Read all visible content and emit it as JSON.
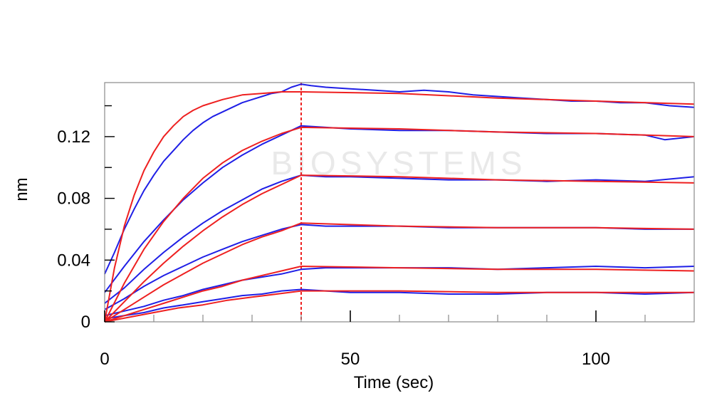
{
  "chart_data": {
    "type": "line",
    "title": "",
    "xlabel": "Time (sec)",
    "ylabel": "nm",
    "xlim": [
      0,
      120
    ],
    "ylim": [
      0,
      0.155
    ],
    "x_ticks": [
      0,
      50,
      100
    ],
    "y_ticks": [
      0,
      0.04,
      0.08,
      0.12
    ],
    "x_tick_labels": [
      "0",
      "50",
      "100"
    ],
    "y_tick_labels": [
      "0",
      "0.04",
      "0.08",
      "0.12"
    ],
    "grid": false,
    "legend": "none",
    "watermark": "BIOSYSTEMS",
    "dissociation_start_x": 40,
    "colors": {
      "measured": "#1f1fe6",
      "fit": "#ee2020",
      "divider": "#ee2020"
    },
    "series": [
      {
        "measured": [
          [
            0,
            0.031
          ],
          [
            2,
            0.045
          ],
          [
            4,
            0.06
          ],
          [
            6,
            0.073
          ],
          [
            8,
            0.085
          ],
          [
            10,
            0.095
          ],
          [
            12,
            0.104
          ],
          [
            14,
            0.111
          ],
          [
            16,
            0.118
          ],
          [
            18,
            0.124
          ],
          [
            20,
            0.129
          ],
          [
            22,
            0.133
          ],
          [
            24,
            0.136
          ],
          [
            26,
            0.139
          ],
          [
            28,
            0.142
          ],
          [
            30,
            0.144
          ],
          [
            32,
            0.146
          ],
          [
            34,
            0.148
          ],
          [
            36,
            0.149
          ],
          [
            38,
            0.152
          ],
          [
            40,
            0.154
          ],
          [
            42,
            0.153
          ],
          [
            45,
            0.152
          ],
          [
            50,
            0.151
          ],
          [
            55,
            0.15
          ],
          [
            60,
            0.149
          ],
          [
            65,
            0.15
          ],
          [
            70,
            0.149
          ],
          [
            75,
            0.147
          ],
          [
            80,
            0.146
          ],
          [
            85,
            0.145
          ],
          [
            90,
            0.144
          ],
          [
            95,
            0.143
          ],
          [
            100,
            0.143
          ],
          [
            105,
            0.142
          ],
          [
            110,
            0.142
          ],
          [
            115,
            0.14
          ],
          [
            120,
            0.139
          ]
        ],
        "fit": [
          [
            0,
            0.0
          ],
          [
            2,
            0.035
          ],
          [
            4,
            0.062
          ],
          [
            6,
            0.082
          ],
          [
            8,
            0.098
          ],
          [
            10,
            0.11
          ],
          [
            12,
            0.12
          ],
          [
            14,
            0.127
          ],
          [
            16,
            0.133
          ],
          [
            18,
            0.137
          ],
          [
            20,
            0.14
          ],
          [
            24,
            0.144
          ],
          [
            28,
            0.147
          ],
          [
            32,
            0.148
          ],
          [
            36,
            0.149
          ],
          [
            40,
            0.149
          ],
          [
            60,
            0.148
          ],
          [
            80,
            0.145
          ],
          [
            100,
            0.143
          ],
          [
            120,
            0.141
          ]
        ]
      },
      {
        "measured": [
          [
            0,
            0.019
          ],
          [
            4,
            0.036
          ],
          [
            8,
            0.052
          ],
          [
            12,
            0.066
          ],
          [
            16,
            0.079
          ],
          [
            20,
            0.09
          ],
          [
            24,
            0.1
          ],
          [
            28,
            0.108
          ],
          [
            32,
            0.115
          ],
          [
            36,
            0.121
          ],
          [
            40,
            0.127
          ],
          [
            45,
            0.126
          ],
          [
            50,
            0.125
          ],
          [
            60,
            0.124
          ],
          [
            70,
            0.124
          ],
          [
            80,
            0.123
          ],
          [
            90,
            0.122
          ],
          [
            100,
            0.122
          ],
          [
            110,
            0.121
          ],
          [
            114,
            0.118
          ],
          [
            120,
            0.12
          ]
        ],
        "fit": [
          [
            0,
            0.0
          ],
          [
            4,
            0.025
          ],
          [
            8,
            0.047
          ],
          [
            12,
            0.065
          ],
          [
            16,
            0.08
          ],
          [
            20,
            0.093
          ],
          [
            24,
            0.103
          ],
          [
            28,
            0.111
          ],
          [
            32,
            0.117
          ],
          [
            36,
            0.122
          ],
          [
            40,
            0.126
          ],
          [
            60,
            0.125
          ],
          [
            80,
            0.123
          ],
          [
            100,
            0.122
          ],
          [
            120,
            0.12
          ]
        ]
      },
      {
        "measured": [
          [
            0,
            0.012
          ],
          [
            4,
            0.022
          ],
          [
            8,
            0.034
          ],
          [
            12,
            0.045
          ],
          [
            16,
            0.055
          ],
          [
            20,
            0.064
          ],
          [
            24,
            0.072
          ],
          [
            28,
            0.079
          ],
          [
            32,
            0.086
          ],
          [
            36,
            0.091
          ],
          [
            40,
            0.095
          ],
          [
            45,
            0.094
          ],
          [
            50,
            0.094
          ],
          [
            60,
            0.093
          ],
          [
            70,
            0.092
          ],
          [
            80,
            0.092
          ],
          [
            90,
            0.091
          ],
          [
            100,
            0.092
          ],
          [
            110,
            0.091
          ],
          [
            120,
            0.094
          ]
        ],
        "fit": [
          [
            0,
            0.0
          ],
          [
            4,
            0.013
          ],
          [
            8,
            0.026
          ],
          [
            12,
            0.038
          ],
          [
            16,
            0.049
          ],
          [
            20,
            0.059
          ],
          [
            24,
            0.068
          ],
          [
            28,
            0.076
          ],
          [
            32,
            0.083
          ],
          [
            36,
            0.089
          ],
          [
            40,
            0.095
          ],
          [
            60,
            0.094
          ],
          [
            80,
            0.092
          ],
          [
            100,
            0.091
          ],
          [
            120,
            0.09
          ]
        ]
      },
      {
        "measured": [
          [
            0,
            0.008
          ],
          [
            4,
            0.015
          ],
          [
            8,
            0.023
          ],
          [
            12,
            0.03
          ],
          [
            16,
            0.036
          ],
          [
            20,
            0.042
          ],
          [
            24,
            0.047
          ],
          [
            28,
            0.052
          ],
          [
            32,
            0.056
          ],
          [
            36,
            0.06
          ],
          [
            40,
            0.063
          ],
          [
            45,
            0.062
          ],
          [
            50,
            0.062
          ],
          [
            60,
            0.062
          ],
          [
            70,
            0.061
          ],
          [
            80,
            0.061
          ],
          [
            90,
            0.061
          ],
          [
            100,
            0.061
          ],
          [
            110,
            0.06
          ],
          [
            120,
            0.06
          ]
        ],
        "fit": [
          [
            0,
            0.0
          ],
          [
            4,
            0.008
          ],
          [
            8,
            0.016
          ],
          [
            12,
            0.024
          ],
          [
            16,
            0.031
          ],
          [
            20,
            0.038
          ],
          [
            24,
            0.044
          ],
          [
            28,
            0.05
          ],
          [
            32,
            0.055
          ],
          [
            36,
            0.059
          ],
          [
            40,
            0.064
          ],
          [
            60,
            0.062
          ],
          [
            80,
            0.061
          ],
          [
            100,
            0.061
          ],
          [
            120,
            0.06
          ]
        ]
      },
      {
        "measured": [
          [
            0,
            0.004
          ],
          [
            4,
            0.007
          ],
          [
            8,
            0.01
          ],
          [
            12,
            0.014
          ],
          [
            16,
            0.017
          ],
          [
            20,
            0.021
          ],
          [
            24,
            0.024
          ],
          [
            28,
            0.027
          ],
          [
            32,
            0.029
          ],
          [
            36,
            0.031
          ],
          [
            40,
            0.034
          ],
          [
            45,
            0.035
          ],
          [
            50,
            0.035
          ],
          [
            60,
            0.035
          ],
          [
            70,
            0.035
          ],
          [
            80,
            0.034
          ],
          [
            90,
            0.035
          ],
          [
            100,
            0.036
          ],
          [
            110,
            0.035
          ],
          [
            120,
            0.036
          ]
        ],
        "fit": [
          [
            0,
            0.0
          ],
          [
            4,
            0.004
          ],
          [
            8,
            0.008
          ],
          [
            12,
            0.012
          ],
          [
            16,
            0.016
          ],
          [
            20,
            0.02
          ],
          [
            24,
            0.023
          ],
          [
            28,
            0.027
          ],
          [
            32,
            0.03
          ],
          [
            36,
            0.033
          ],
          [
            40,
            0.036
          ],
          [
            60,
            0.035
          ],
          [
            80,
            0.034
          ],
          [
            100,
            0.034
          ],
          [
            120,
            0.033
          ]
        ]
      },
      {
        "measured": [
          [
            0,
            0.002
          ],
          [
            4,
            0.004
          ],
          [
            8,
            0.006
          ],
          [
            12,
            0.009
          ],
          [
            16,
            0.011
          ],
          [
            20,
            0.013
          ],
          [
            24,
            0.015
          ],
          [
            28,
            0.017
          ],
          [
            32,
            0.018
          ],
          [
            36,
            0.02
          ],
          [
            40,
            0.021
          ],
          [
            45,
            0.02
          ],
          [
            50,
            0.019
          ],
          [
            60,
            0.019
          ],
          [
            70,
            0.018
          ],
          [
            80,
            0.018
          ],
          [
            90,
            0.019
          ],
          [
            100,
            0.019
          ],
          [
            110,
            0.018
          ],
          [
            120,
            0.019
          ]
        ],
        "fit": [
          [
            0,
            0.0
          ],
          [
            5,
            0.003
          ],
          [
            10,
            0.006
          ],
          [
            15,
            0.009
          ],
          [
            20,
            0.011
          ],
          [
            25,
            0.014
          ],
          [
            30,
            0.016
          ],
          [
            35,
            0.018
          ],
          [
            40,
            0.02
          ],
          [
            60,
            0.02
          ],
          [
            80,
            0.019
          ],
          [
            100,
            0.019
          ],
          [
            120,
            0.019
          ]
        ]
      }
    ]
  }
}
